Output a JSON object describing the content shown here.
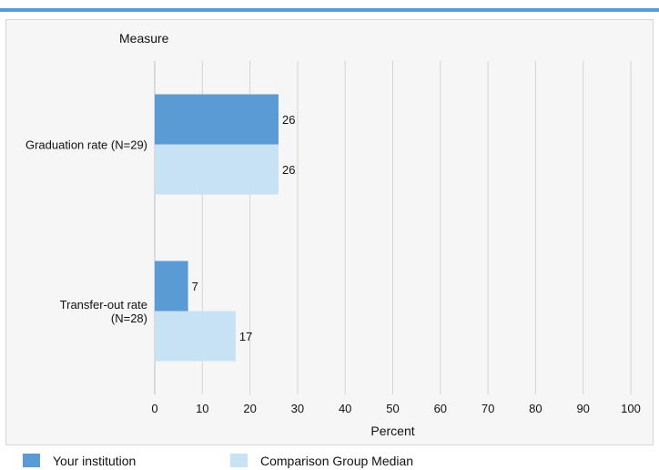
{
  "chart_data": {
    "type": "bar",
    "orientation": "horizontal",
    "measure_label": "Measure",
    "categories": [
      "Graduation rate (N=29)",
      "Transfer-out rate (N=28)"
    ],
    "series": [
      {
        "name": "Your institution",
        "values": [
          26,
          7
        ],
        "color": "#5b9bd5"
      },
      {
        "name": "Comparison Group Median",
        "values": [
          26,
          17
        ],
        "color": "#c7e2f5"
      }
    ],
    "xlabel": "Percent",
    "xlim": [
      0,
      100
    ],
    "xticks": [
      0,
      10,
      20,
      30,
      40,
      50,
      60,
      70,
      80,
      90,
      100
    ],
    "grid": true,
    "legend_position": "bottom"
  }
}
